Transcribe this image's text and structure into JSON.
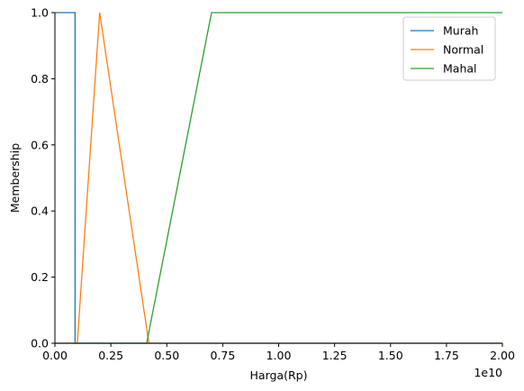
{
  "chart_data": {
    "type": "line",
    "xlabel": "Harga(Rp)",
    "ylabel": "Membership",
    "offset_label": "1e10",
    "xlim": [
      0,
      2.0
    ],
    "ylim": [
      0,
      1.0
    ],
    "xticks": [
      0.0,
      0.25,
      0.5,
      0.75,
      1.0,
      1.25,
      1.5,
      1.75,
      2.0
    ],
    "xtick_labels": [
      "0.00",
      "0.25",
      "0.50",
      "0.75",
      "1.00",
      "1.25",
      "1.50",
      "1.75",
      "2.00"
    ],
    "yticks": [
      0.0,
      0.2,
      0.4,
      0.6,
      0.8,
      1.0
    ],
    "ytick_labels": [
      "0.0",
      "0.2",
      "0.4",
      "0.6",
      "0.8",
      "1.0"
    ],
    "grid": false,
    "legend_position": "top-right",
    "series": [
      {
        "name": "Murah",
        "color": "#1f77b4",
        "x": [
          0.0,
          0.09,
          0.09,
          0.105,
          2.0
        ],
        "y": [
          1.0,
          1.0,
          0.0,
          0.0,
          0.0
        ]
      },
      {
        "name": "Normal",
        "color": "#ff7f0e",
        "x": [
          0.0,
          0.1,
          0.2,
          0.42,
          2.0
        ],
        "y": [
          0.0,
          0.0,
          1.0,
          0.0,
          0.0
        ]
      },
      {
        "name": "Mahal",
        "color": "#2ca02c",
        "x": [
          0.0,
          0.41,
          0.7,
          2.0
        ],
        "y": [
          0.0,
          0.0,
          1.0,
          1.0
        ]
      }
    ]
  }
}
